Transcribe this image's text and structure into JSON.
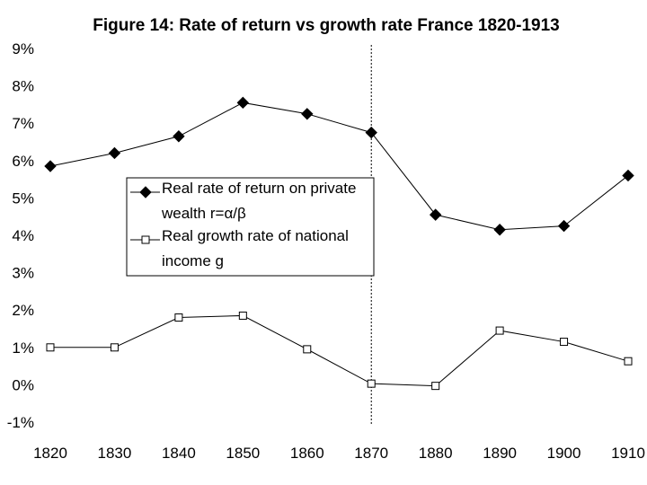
{
  "chart_data": {
    "type": "line",
    "title": "Figure 14: Rate of return vs growth rate France 1820-1913",
    "xlabel": "",
    "ylabel": "",
    "x": [
      1820,
      1830,
      1840,
      1850,
      1860,
      1870,
      1880,
      1890,
      1900,
      1910
    ],
    "x_tick_labels": [
      "1820",
      "1830",
      "1840",
      "1850",
      "1860",
      "1870",
      "1880",
      "1890",
      "1900",
      "1910"
    ],
    "xlim": [
      1820,
      1910
    ],
    "ylim": [
      -0.01,
      0.09
    ],
    "y_ticks": [
      -0.01,
      0.0,
      0.01,
      0.02,
      0.03,
      0.04,
      0.05,
      0.06,
      0.07,
      0.08,
      0.09
    ],
    "y_tick_labels": [
      "-1%",
      "0%",
      "1%",
      "2%",
      "3%",
      "4%",
      "5%",
      "6%",
      "7%",
      "8%",
      "9%"
    ],
    "grid": false,
    "legend_position": "center-left",
    "reference_line": {
      "x": 1870,
      "style": "dotted"
    },
    "series": [
      {
        "name": "Real rate of return on private wealth r=α/β",
        "legend_lines": [
          "Real rate of return on private",
          "wealth r=α/β"
        ],
        "marker": "filled-diamond",
        "color": "#000000",
        "values": [
          0.0585,
          0.062,
          0.0665,
          0.0755,
          0.0725,
          0.0675,
          0.0455,
          0.0415,
          0.0425,
          0.056
        ]
      },
      {
        "name": "Real growth rate of national income g",
        "legend_lines": [
          "Real growth rate of national",
          "income g"
        ],
        "marker": "open-square",
        "color": "#000000",
        "values": [
          0.01,
          0.01,
          0.018,
          0.0185,
          0.0095,
          0.0003,
          -0.0003,
          0.0145,
          0.0115,
          0.0063
        ]
      }
    ]
  }
}
